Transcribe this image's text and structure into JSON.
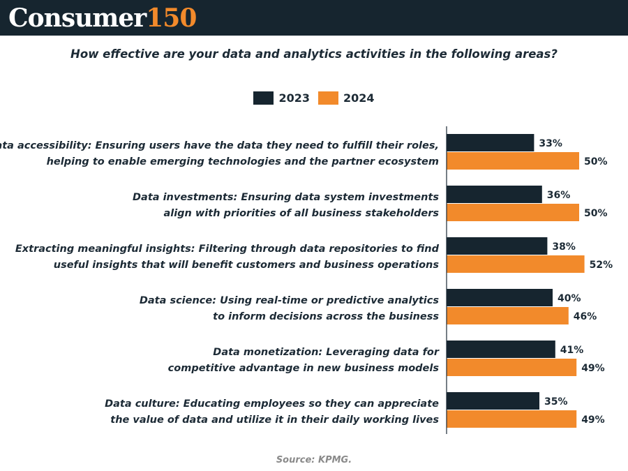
{
  "header": {
    "brand_main": "Consumer",
    "brand_number": "150",
    "bg_color": "#16252f",
    "accent_color": "#f28a2b"
  },
  "chart_data": {
    "type": "bar",
    "orientation": "horizontal",
    "title": "How effective are your data and analytics activities in the following areas?",
    "categories": [
      [
        "Data accessibility: Ensuring users have the data they need to fulfill their roles,",
        "helping to enable emerging technologies and the partner ecosystem"
      ],
      [
        "Data investments: Ensuring data system investments",
        "align with priorities of all business stakeholders"
      ],
      [
        "Extracting meaningful insights: Filtering through data repositories to find",
        "useful insights that will benefit customers and business operations"
      ],
      [
        "Data science: Using real-time or predictive analytics",
        "to inform decisions across the business"
      ],
      [
        "Data monetization: Leveraging data for",
        "competitive advantage in new business models"
      ],
      [
        "Data culture: Educating employees so they can appreciate",
        "the value of data and utilize it in their daily working lives"
      ]
    ],
    "series": [
      {
        "name": "2023",
        "color": "#16252f",
        "values": [
          33,
          36,
          38,
          40,
          41,
          35
        ],
        "labels": [
          "33%",
          "36%",
          "38%",
          "40%",
          "41%",
          "35%"
        ]
      },
      {
        "name": "2024",
        "color": "#f28a2b",
        "values": [
          50,
          50,
          52,
          46,
          49,
          49
        ],
        "labels": [
          "50%",
          "50%",
          "52%",
          "46%",
          "49%",
          "49%"
        ]
      }
    ],
    "xlim": [
      0,
      100
    ],
    "grid": false,
    "legend_position": "top-center"
  },
  "source": "Source: KPMG."
}
